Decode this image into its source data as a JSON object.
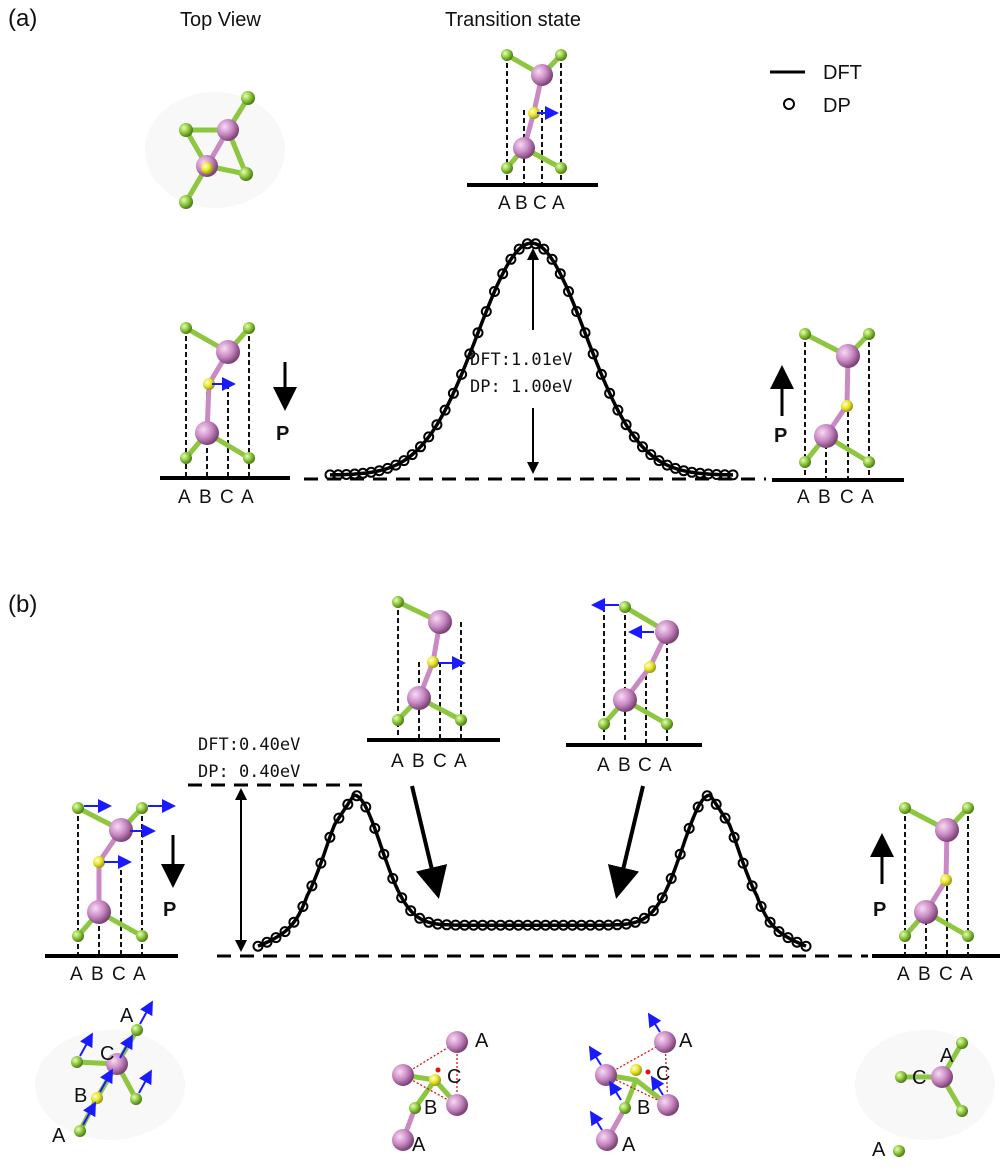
{
  "panels": {
    "a": {
      "tag": "(a)",
      "top_view_label": "Top View",
      "transition_label": "Transition state",
      "legend": {
        "dft_label": "DFT",
        "dp_label": "DP"
      },
      "barrier": {
        "dft": "DFT:1.01eV",
        "dp": "DP: 1.00eV"
      },
      "stacking_label": "ABCA",
      "polarization_label": "P",
      "stacking_letters": [
        "A",
        "B",
        "C",
        "A"
      ]
    },
    "b": {
      "tag": "(b)",
      "barrier": {
        "dft": "DFT:0.40eV",
        "dp": "DP: 0.40eV"
      },
      "stacking_label": "ABCA",
      "polarization_label": "P",
      "stacking_letters": [
        "A",
        "B",
        "C",
        "A"
      ],
      "topview_letters": {
        "A": "A",
        "B": "B",
        "C": "C"
      }
    }
  },
  "colors": {
    "selenium_green": "#8dc63f",
    "indium_pink": "#c98ac3",
    "yellow_atom": "#e7e52c",
    "arrow_blue": "#1a1aff",
    "red_center": "#e01010"
  },
  "icons": [
    "atom-structure-icon",
    "polarization-arrow-icon",
    "displacement-arrow-icon"
  ]
}
